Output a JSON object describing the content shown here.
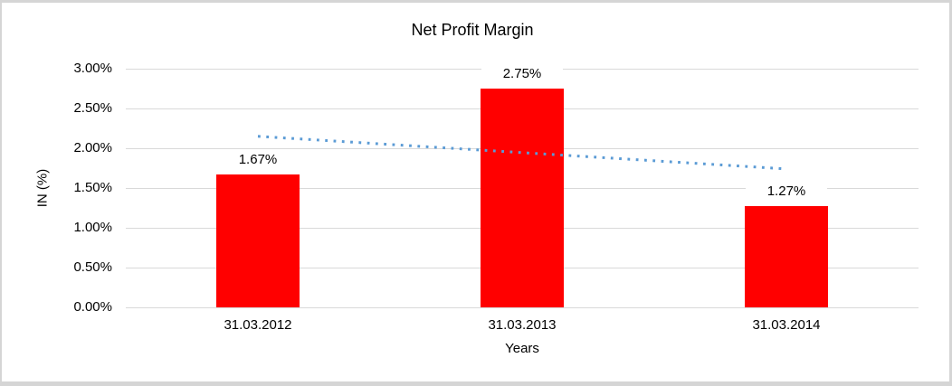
{
  "chart_data": {
    "type": "bar",
    "title": "Net Profit Margin",
    "xlabel": "Years",
    "ylabel": "IN (%)",
    "categories": [
      "31.03.2012",
      "31.03.2013",
      "31.03.2014"
    ],
    "values": [
      1.67,
      2.75,
      1.27
    ],
    "data_labels": [
      "1.67%",
      "2.75%",
      "1.27%"
    ],
    "y_ticks": [
      "0.00%",
      "0.50%",
      "1.00%",
      "1.50%",
      "2.00%",
      "2.50%",
      "3.00%"
    ],
    "y_tick_values": [
      0,
      0.5,
      1.0,
      1.5,
      2.0,
      2.5,
      3.0
    ],
    "ylim": [
      0,
      3.0
    ],
    "grid": true,
    "legend": false,
    "trendline": {
      "type": "linear",
      "style": "dotted",
      "color": "#5B9BD5",
      "start_category": 0,
      "end_category": 2,
      "start_value": 2.15,
      "end_value": 1.74
    },
    "colors": {
      "bar": "#FF0000",
      "gridline": "#D9D9D9",
      "text": "#000000",
      "frame_border": "#D5D5D5",
      "background": "#FFFFFF"
    }
  }
}
